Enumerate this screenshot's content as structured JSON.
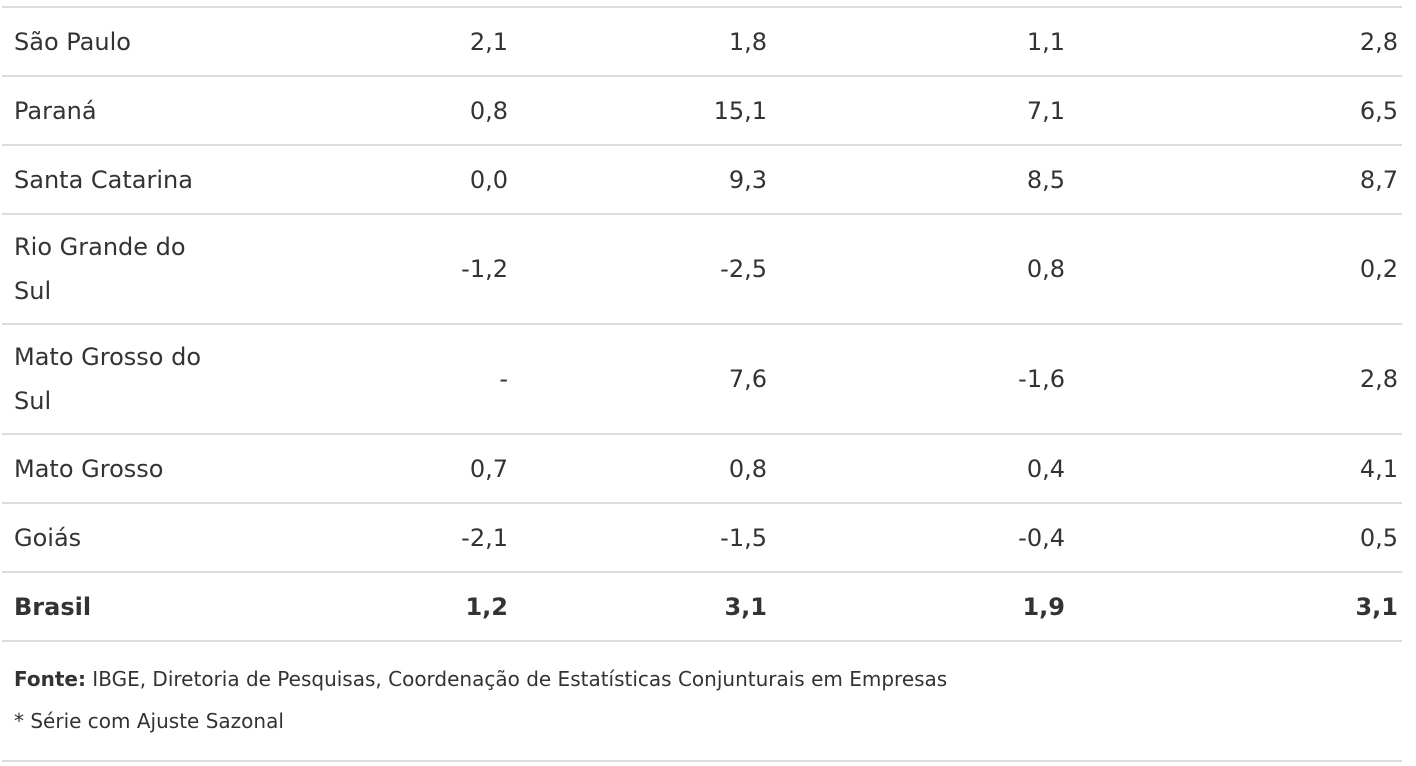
{
  "table": {
    "rows": [
      {
        "name": "São Paulo",
        "values": [
          "2,1",
          "1,8",
          "1,1",
          "2,8"
        ],
        "layout": "single"
      },
      {
        "name": "Paraná",
        "values": [
          "0,8",
          "15,1",
          "7,1",
          "6,5"
        ],
        "layout": "single"
      },
      {
        "name": "Santa Catarina",
        "values": [
          "0,0",
          "9,3",
          "8,5",
          "8,7"
        ],
        "layout": "single"
      },
      {
        "name": "Rio Grande do Sul",
        "values": [
          "-1,2",
          "-2,5",
          "0,8",
          "0,2"
        ],
        "layout": "double"
      },
      {
        "name": "Mato Grosso do Sul",
        "values": [
          "-",
          "7,6",
          "-1,6",
          "2,8"
        ],
        "layout": "double"
      },
      {
        "name": "Mato Grosso",
        "values": [
          "0,7",
          "0,8",
          "0,4",
          "4,1"
        ],
        "layout": "single"
      },
      {
        "name": "Goiás",
        "values": [
          "-2,1",
          "-1,5",
          "-0,4",
          "0,5"
        ],
        "layout": "single"
      },
      {
        "name": "Brasil",
        "values": [
          "1,2",
          "3,1",
          "1,9",
          "3,1"
        ],
        "layout": "single",
        "total": true
      }
    ]
  },
  "notes": {
    "source_label": "Fonte:",
    "source_text": " IBGE, Diretoria de Pesquisas, Coordenação de Estatísticas Conjunturais em Empresas",
    "footnote": "* Série com Ajuste Sazonal"
  }
}
